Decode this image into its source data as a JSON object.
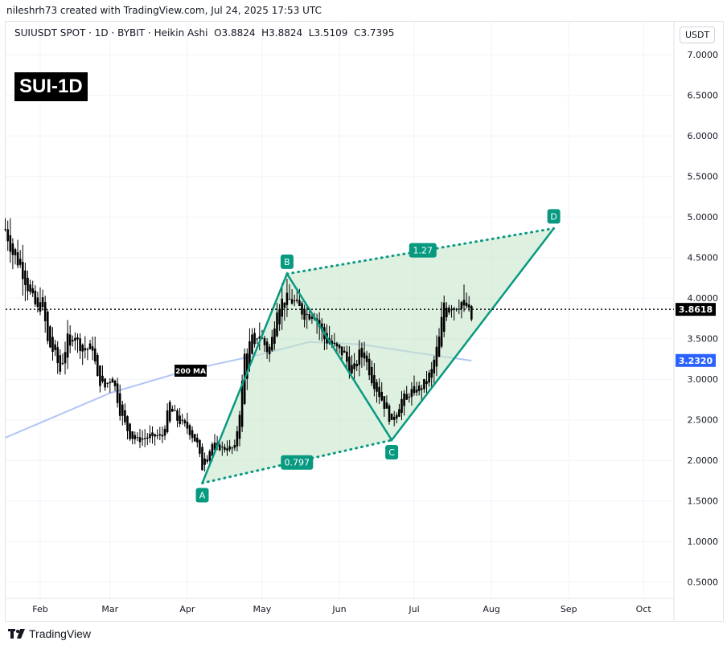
{
  "header": {
    "credit": "nileshrh73 created with TradingView.com, Jul 24, 2025 17:53 UTC",
    "symbol": "SUIUSDT SPOT · 1D · BYBIT · Heikin Ashi",
    "ohlc": "O3.8824  H3.8824  L3.5109  C3.7395",
    "badge": "SUI-1D",
    "currency": "USDT"
  },
  "footer": {
    "brand": "TradingView"
  },
  "chart_data": {
    "type": "candlestick",
    "ylim": [
      0.25,
      7.3
    ],
    "y_ticks": [
      "7.0000",
      "6.5000",
      "6.0000",
      "5.5000",
      "5.0000",
      "4.5000",
      "4.0000",
      "3.5000",
      "3.0000",
      "2.5000",
      "2.0000",
      "1.5000",
      "1.0000",
      "0.5000"
    ],
    "x_ticks": [
      "Feb",
      "Mar",
      "Apr",
      "May",
      "Jun",
      "Jul",
      "Aug",
      "Sep",
      "Oct"
    ],
    "grid": true,
    "last_price": {
      "value": 3.8618,
      "label": "3.8618",
      "color": "#000000"
    },
    "ma": {
      "name": "200 MA",
      "label": "3.2320",
      "value": 3.232,
      "color": "#2962ff",
      "points": [
        [
          "2025-01-18",
          2.28
        ],
        [
          "2025-03-01",
          2.83
        ],
        [
          "2025-04-01",
          3.11
        ],
        [
          "2025-05-01",
          3.31
        ],
        [
          "2025-05-20",
          3.46
        ],
        [
          "2025-06-10",
          3.43
        ],
        [
          "2025-07-01",
          3.33
        ],
        [
          "2025-07-24",
          3.23
        ]
      ]
    },
    "close_path": [
      [
        "2025-01-18",
        4.85
      ],
      [
        "2025-01-21",
        4.55
      ],
      [
        "2025-01-24",
        4.4
      ],
      [
        "2025-01-28",
        4.05
      ],
      [
        "2025-01-31",
        3.85
      ],
      [
        "2025-02-02",
        3.95
      ],
      [
        "2025-02-04",
        3.45
      ],
      [
        "2025-02-07",
        3.3
      ],
      [
        "2025-02-09",
        3.1
      ],
      [
        "2025-02-12",
        3.5
      ],
      [
        "2025-02-15",
        3.55
      ],
      [
        "2025-02-18",
        3.35
      ],
      [
        "2025-02-22",
        3.4
      ],
      [
        "2025-02-24",
        3.0
      ],
      [
        "2025-02-27",
        2.9
      ],
      [
        "2025-03-02",
        3.05
      ],
      [
        "2025-03-05",
        2.6
      ],
      [
        "2025-03-09",
        2.3
      ],
      [
        "2025-03-12",
        2.25
      ],
      [
        "2025-03-17",
        2.3
      ],
      [
        "2025-03-22",
        2.3
      ],
      [
        "2025-03-25",
        2.7
      ],
      [
        "2025-03-28",
        2.5
      ],
      [
        "2025-04-01",
        2.4
      ],
      [
        "2025-04-05",
        2.2
      ],
      [
        "2025-04-07",
        1.9
      ],
      [
        "2025-04-11",
        2.2
      ],
      [
        "2025-04-15",
        2.15
      ],
      [
        "2025-04-20",
        2.15
      ],
      [
        "2025-04-22",
        2.6
      ],
      [
        "2025-04-24",
        3.3
      ],
      [
        "2025-04-27",
        3.5
      ],
      [
        "2025-04-30",
        3.55
      ],
      [
        "2025-05-04",
        3.3
      ],
      [
        "2025-05-07",
        3.9
      ],
      [
        "2025-05-10",
        4.0
      ],
      [
        "2025-05-14",
        3.95
      ],
      [
        "2025-05-18",
        3.8
      ],
      [
        "2025-05-22",
        3.8
      ],
      [
        "2025-05-26",
        3.5
      ],
      [
        "2025-05-30",
        3.4
      ],
      [
        "2025-06-03",
        3.3
      ],
      [
        "2025-06-06",
        3.05
      ],
      [
        "2025-06-10",
        3.4
      ],
      [
        "2025-06-14",
        3.0
      ],
      [
        "2025-06-18",
        2.75
      ],
      [
        "2025-06-22",
        2.45
      ],
      [
        "2025-06-26",
        2.75
      ],
      [
        "2025-06-30",
        2.85
      ],
      [
        "2025-07-04",
        2.9
      ],
      [
        "2025-07-08",
        3.1
      ],
      [
        "2025-07-11",
        3.5
      ],
      [
        "2025-07-13",
        3.95
      ],
      [
        "2025-07-17",
        3.9
      ],
      [
        "2025-07-20",
        3.95
      ],
      [
        "2025-07-22",
        3.9
      ],
      [
        "2025-07-24",
        3.74
      ]
    ],
    "pattern": {
      "color": "#089981",
      "fill": "#c8e6c9",
      "points": [
        {
          "label": "A",
          "date": "2025-04-07",
          "price": 1.72
        },
        {
          "label": "B",
          "date": "2025-05-11",
          "price": 4.3
        },
        {
          "label": "C",
          "date": "2025-06-22",
          "price": 2.25
        },
        {
          "label": "D",
          "date": "2025-08-26",
          "price": 4.86
        }
      ],
      "ratios": {
        "bd": "1.27",
        "ac": "0.797"
      }
    }
  }
}
